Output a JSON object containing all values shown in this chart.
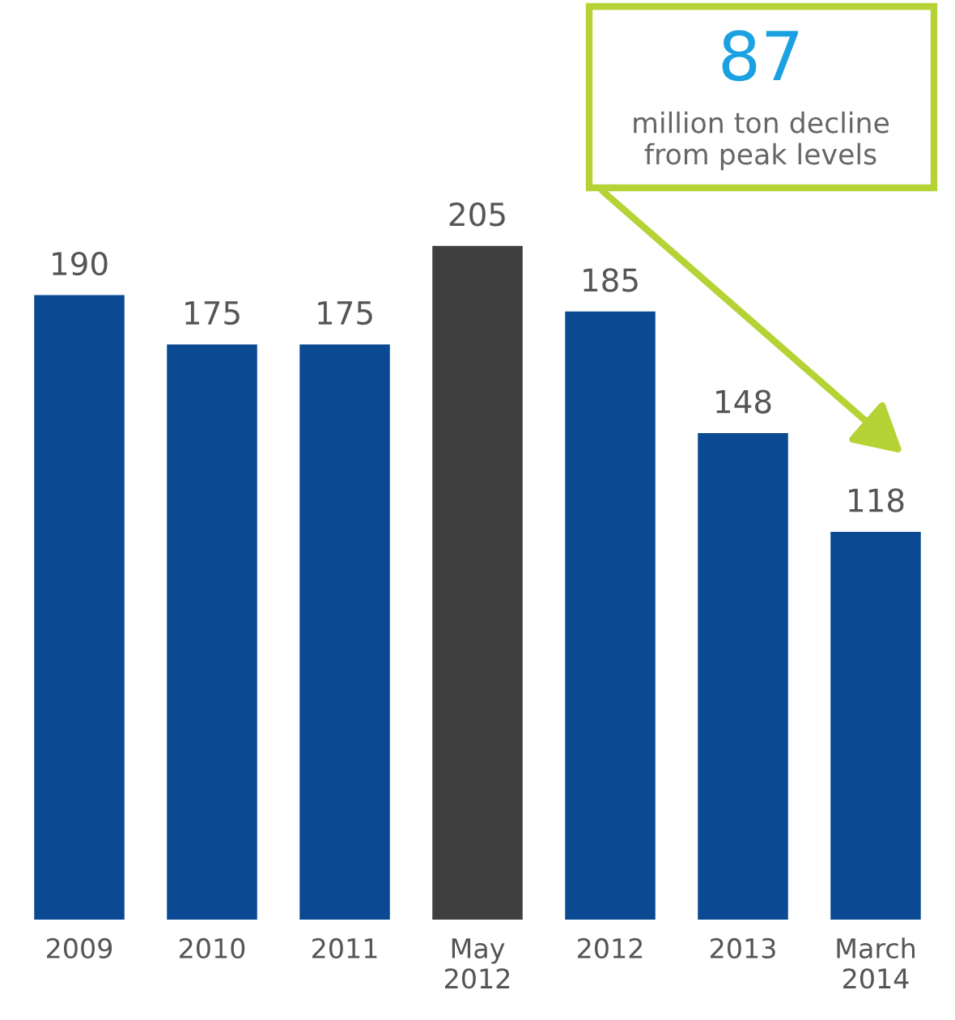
{
  "chart_data": {
    "type": "bar",
    "categories": [
      "2009",
      "2010",
      "2011",
      "May\n2012",
      "2012",
      "2013",
      "March\n2014"
    ],
    "values": [
      190,
      175,
      175,
      205,
      185,
      148,
      118
    ],
    "colors": [
      "#0b4a93",
      "#0b4a93",
      "#0b4a93",
      "#3f3f3f",
      "#0b4a93",
      "#0b4a93",
      "#0b4a93"
    ],
    "data_labels": true,
    "annotations": [
      "87",
      "million ton decline\nfrom peak levels"
    ]
  }
}
